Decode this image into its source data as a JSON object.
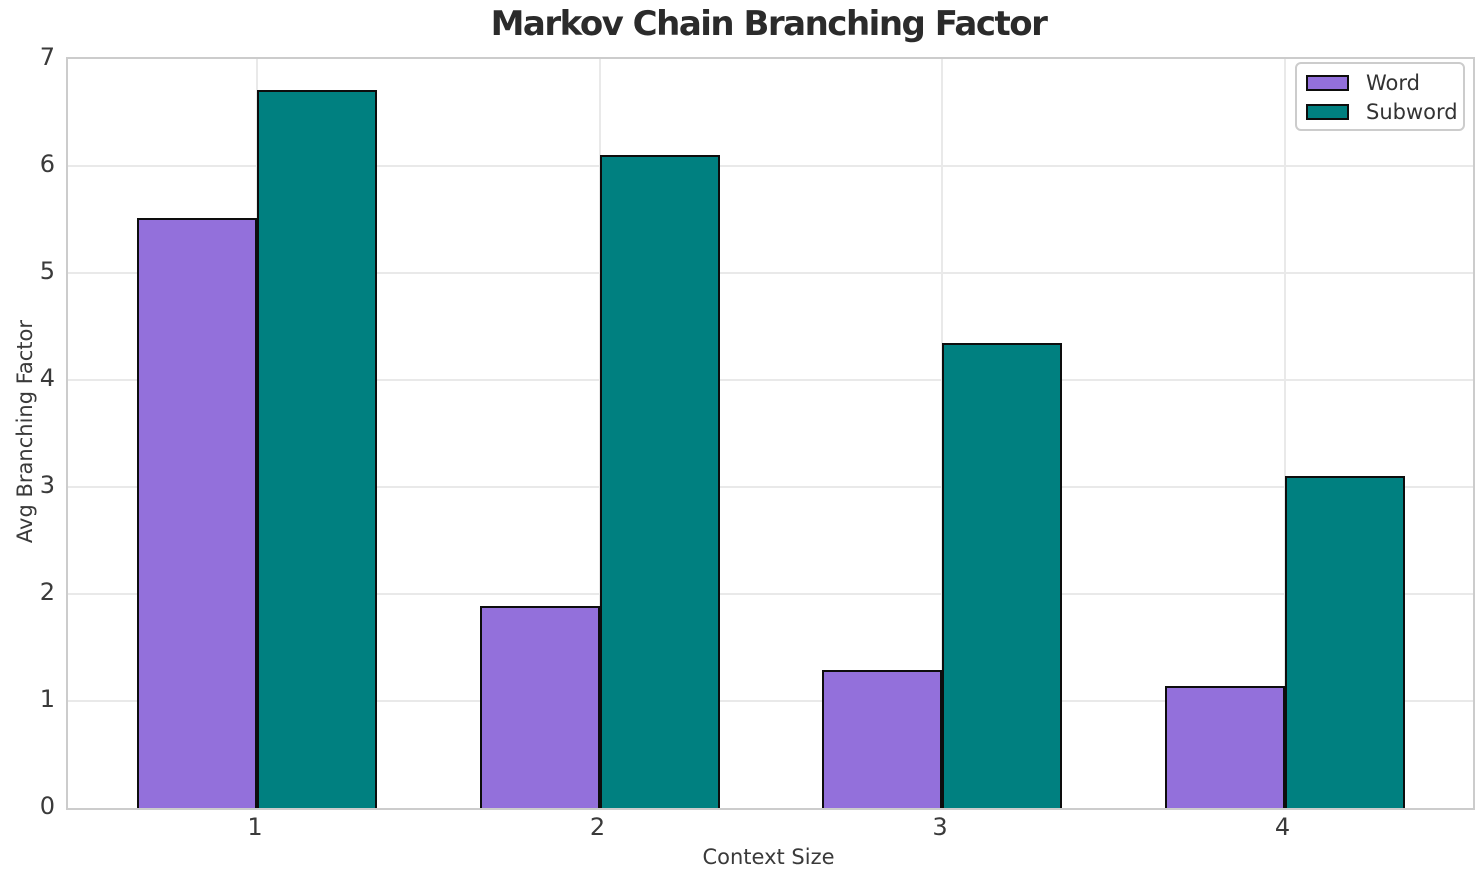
{
  "chart_data": {
    "type": "bar",
    "title": "Markov Chain Branching Factor",
    "xlabel": "Context Size",
    "ylabel": "Avg Branching Factor",
    "categories": [
      "1",
      "2",
      "3",
      "4"
    ],
    "series": [
      {
        "name": "Word",
        "color": "#9370DB",
        "values": [
          5.51,
          1.89,
          1.29,
          1.14
        ]
      },
      {
        "name": "Subword",
        "color": "#008080",
        "values": [
          6.71,
          6.1,
          4.35,
          3.1
        ]
      }
    ],
    "bar_edge_color": "#0d0d0d",
    "ylim": [
      0,
      7
    ],
    "yticks": [
      0,
      1,
      2,
      3,
      4,
      5,
      6,
      7
    ],
    "grid": "both",
    "legend_position": "upper right"
  }
}
